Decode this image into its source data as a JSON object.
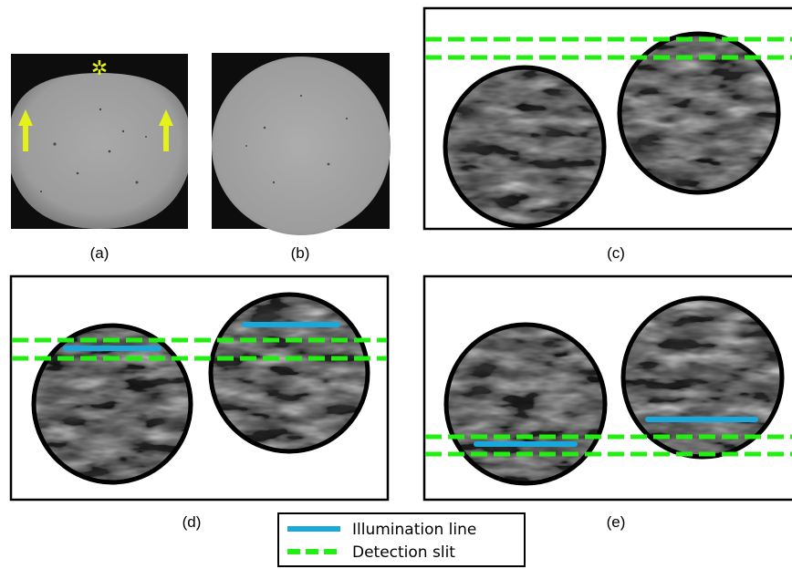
{
  "panels": {
    "a": {
      "caption": "(a)",
      "marker_symbol": "✲"
    },
    "b": {
      "caption": "(b)"
    },
    "c": {
      "caption": "(c)"
    },
    "d": {
      "caption": "(d)"
    },
    "e": {
      "caption": "(e)"
    }
  },
  "legend": {
    "illumination_label": "Illumination line",
    "detection_label": "Detection slit"
  },
  "colors": {
    "illumination_line": "#1aa7dc",
    "detection_slit": "#22ee11",
    "marker": "#e4f21a",
    "frame": "#000000"
  }
}
